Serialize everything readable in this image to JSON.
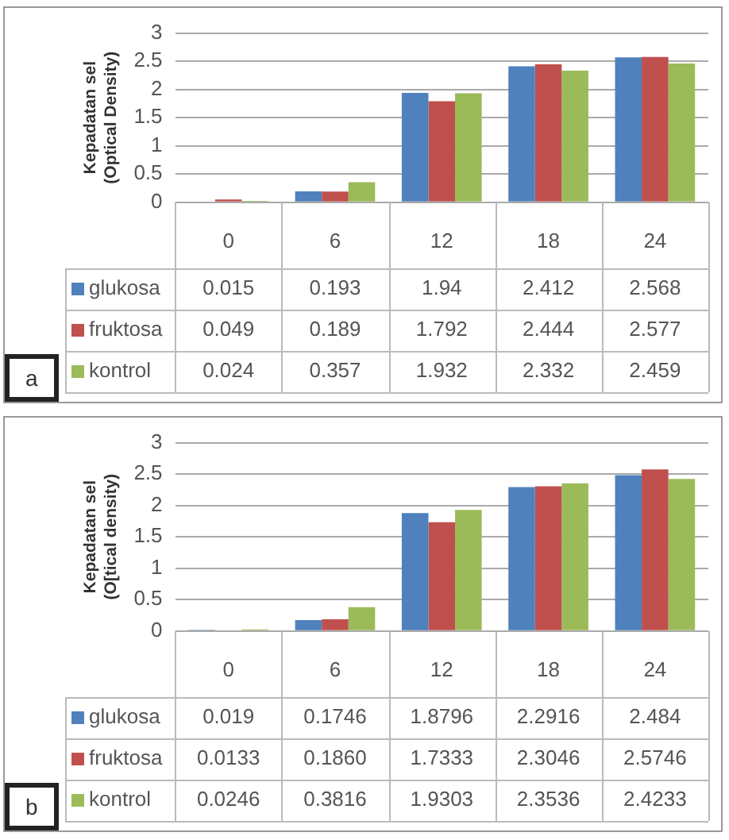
{
  "chart_data": [
    {
      "type": "bar",
      "ylabel": "Kepadatan sel (Optical Density)",
      "categories": [
        "0",
        "6",
        "12",
        "18",
        "24"
      ],
      "ylim": [
        0,
        3
      ],
      "yticks": [
        0,
        0.5,
        1,
        1.5,
        2,
        2.5,
        3
      ],
      "grid": "y",
      "legend": "bottom left",
      "annotations": [
        "a"
      ],
      "series": [
        {
          "name": "glukosa",
          "color": "#4f81bd",
          "values": [
            0.015,
            0.193,
            1.94,
            2.412,
            2.568
          ],
          "value_labels": [
            "0.015",
            "0.193",
            "1.94",
            "2.412",
            "2.568"
          ]
        },
        {
          "name": "fruktosa",
          "color": "#c0504d",
          "values": [
            0.049,
            0.189,
            1.792,
            2.444,
            2.577
          ],
          "value_labels": [
            "0.049",
            "0.189",
            "1.792",
            "2.444",
            "2.577"
          ]
        },
        {
          "name": "kontrol",
          "color": "#9bbb59",
          "values": [
            0.024,
            0.357,
            1.932,
            2.332,
            2.459
          ],
          "value_labels": [
            "0.024",
            "0.357",
            "1.932",
            "2.332",
            "2.459"
          ]
        }
      ]
    },
    {
      "type": "bar",
      "ylabel": "Kepadatan sel (O[tical density)",
      "categories": [
        "0",
        "6",
        "12",
        "18",
        "24"
      ],
      "ylim": [
        0,
        3
      ],
      "yticks": [
        0,
        0.5,
        1,
        1.5,
        2,
        2.5,
        3
      ],
      "grid": "y",
      "legend": "bottom left",
      "annotations": [
        "b"
      ],
      "series": [
        {
          "name": "glukosa",
          "color": "#4f81bd",
          "values": [
            0.019,
            0.1746,
            1.8796,
            2.2916,
            2.484
          ],
          "value_labels": [
            "0.019",
            "0.1746",
            "1.8796",
            "2.2916",
            "2.484"
          ]
        },
        {
          "name": "fruktosa",
          "color": "#c0504d",
          "values": [
            0.0133,
            0.186,
            1.7333,
            2.3046,
            2.5746
          ],
          "value_labels": [
            "0.0133",
            "0.1860",
            "1.7333",
            "2.3046",
            "2.5746"
          ]
        },
        {
          "name": "kontrol",
          "color": "#9bbb59",
          "values": [
            0.0246,
            0.3816,
            1.9303,
            2.3536,
            2.4233
          ],
          "value_labels": [
            "0.0246",
            "0.3816",
            "1.9303",
            "2.3536",
            "2.4233"
          ]
        }
      ]
    }
  ]
}
